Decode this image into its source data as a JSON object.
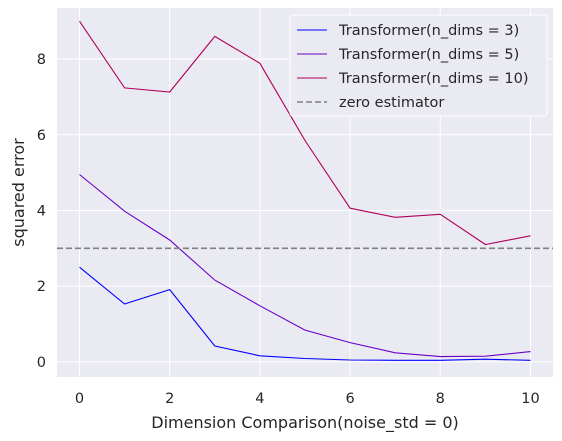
{
  "chart_data": {
    "type": "line",
    "title": "",
    "xlabel": "Dimension Comparison(noise_std = 0)",
    "ylabel": "squared error",
    "xlim": [
      -0.5,
      10.5
    ],
    "ylim": [
      -0.4,
      9.35
    ],
    "xticks": [
      0,
      2,
      4,
      6,
      8,
      10
    ],
    "yticks": [
      0,
      2,
      4,
      6,
      8
    ],
    "grid": true,
    "legend_position": "top-right",
    "x": [
      0,
      1,
      2,
      3,
      4,
      5,
      6,
      7,
      8,
      9,
      10
    ],
    "series": [
      {
        "name": "Transformer(n_dims = 3)",
        "color": "#0000ff",
        "style": "solid",
        "values": [
          2.5,
          1.53,
          1.91,
          0.42,
          0.16,
          0.09,
          0.05,
          0.04,
          0.04,
          0.07,
          0.04
        ]
      },
      {
        "name": "Transformer(n_dims = 5)",
        "color": "#6a00c8",
        "style": "solid",
        "values": [
          4.95,
          3.98,
          3.22,
          2.16,
          1.48,
          0.84,
          0.51,
          0.24,
          0.14,
          0.15,
          0.27
        ]
      },
      {
        "name": "Transformer(n_dims = 10)",
        "color": "#b0005a",
        "style": "solid",
        "values": [
          9.0,
          7.24,
          7.13,
          8.6,
          7.89,
          5.85,
          4.06,
          3.82,
          3.9,
          3.1,
          3.33
        ]
      },
      {
        "name": "zero estimator",
        "color": "#808080",
        "style": "dashed",
        "constant": 3.0
      }
    ]
  }
}
